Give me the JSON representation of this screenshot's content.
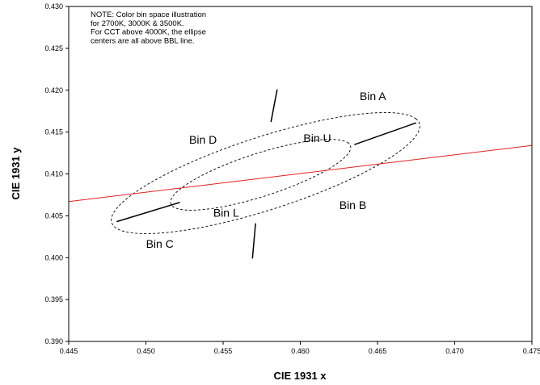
{
  "chart_data": {
    "type": "scatter",
    "xlabel": "CIE 1931 x",
    "ylabel": "CIE 1931 y",
    "xlim": [
      0.445,
      0.475
    ],
    "ylim": [
      0.39,
      0.43
    ],
    "x_ticks": [
      "0.445",
      "0.450",
      "0.455",
      "0.460",
      "0.465",
      "0.470",
      "0.475"
    ],
    "y_ticks": [
      "0.390",
      "0.395",
      "0.400",
      "0.405",
      "0.410",
      "0.415",
      "0.420",
      "0.425",
      "0.430"
    ],
    "grid": false,
    "note_lines": [
      "NOTE: Color bin space illustration",
      "for  2700K, 3000K & 3500K.",
      "For CCT above 4000K, the ellipse",
      "centers are all above BBL line."
    ],
    "bbl_line": {
      "x": [
        0.445,
        0.475
      ],
      "y": [
        0.4067,
        0.4134
      ],
      "color": "#e02020"
    },
    "outer_ellipse": {
      "center": [
        0.45775,
        0.4101
      ],
      "semi_major": 0.0117,
      "semi_minor": 0.0039,
      "angle_deg": 33.5
    },
    "inner_ellipse": {
      "center": [
        0.45743,
        0.4099
      ],
      "semi_major": 0.00683,
      "semi_minor": 0.0023,
      "angle_deg": 33.5
    },
    "dividers": [
      {
        "x": [
          0.4585,
          0.4581
        ],
        "y": [
          0.4201,
          0.4162
        ]
      },
      {
        "x": [
          0.4635,
          0.4675
        ],
        "y": [
          0.4135,
          0.4161
        ]
      },
      {
        "x": [
          0.4571,
          0.4569
        ],
        "y": [
          0.4041,
          0.3999
        ]
      },
      {
        "x": [
          0.4481,
          0.4522
        ],
        "y": [
          0.4043,
          0.4066
        ]
      }
    ],
    "regions": [
      {
        "label": "Bin A",
        "x": 0.4647,
        "y": 0.4188
      },
      {
        "label": "Bin D",
        "x": 0.4537,
        "y": 0.4136
      },
      {
        "label": "Bin U",
        "x": 0.4611,
        "y": 0.4138
      },
      {
        "label": "Bin B",
        "x": 0.4634,
        "y": 0.4058
      },
      {
        "label": "Bin L",
        "x": 0.4552,
        "y": 0.4049
      },
      {
        "label": "Bin C",
        "x": 0.4509,
        "y": 0.4012
      }
    ]
  }
}
